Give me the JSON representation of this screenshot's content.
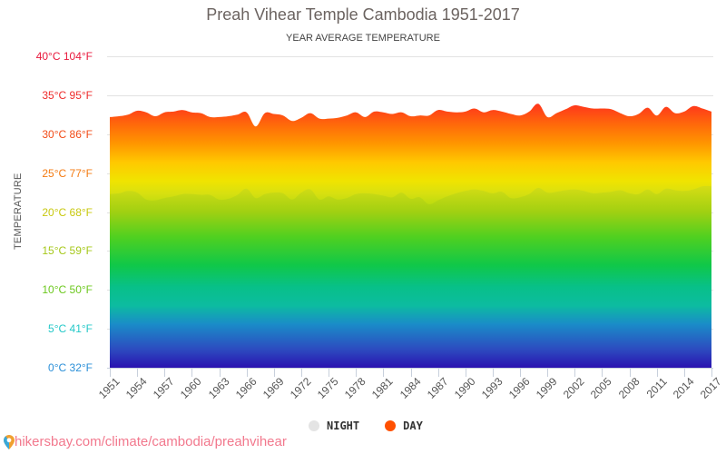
{
  "header": {
    "title": "Preah Vihear Temple Cambodia 1951-2017",
    "subtitle": "YEAR AVERAGE TEMPERATURE"
  },
  "yaxis": {
    "title": "TEMPERATURE",
    "ticks": [
      {
        "label": "40°C 104°F",
        "value": 40,
        "color": "#e8183c"
      },
      {
        "label": "35°C 95°F",
        "value": 35,
        "color": "#ee2b2b"
      },
      {
        "label": "30°C 86°F",
        "value": 30,
        "color": "#f24c18"
      },
      {
        "label": "25°C 77°F",
        "value": 25,
        "color": "#f47b12"
      },
      {
        "label": "20°C 68°F",
        "value": 20,
        "color": "#c8c80e"
      },
      {
        "label": "15°C 59°F",
        "value": 15,
        "color": "#a6c81a"
      },
      {
        "label": "10°C 50°F",
        "value": 10,
        "color": "#6cc81e"
      },
      {
        "label": "5°C 41°F",
        "value": 5,
        "color": "#23c8c8"
      },
      {
        "label": "0°C 32°F",
        "value": 0,
        "color": "#2a8fd8"
      }
    ]
  },
  "xaxis": {
    "ticks": [
      "1951",
      "1954",
      "1957",
      "1960",
      "1963",
      "1966",
      "1969",
      "1972",
      "1975",
      "1978",
      "1981",
      "1984",
      "1987",
      "1990",
      "1993",
      "1996",
      "1999",
      "2002",
      "2005",
      "2008",
      "2011",
      "2014",
      "2017"
    ]
  },
  "legend": {
    "night": {
      "label": "NIGHT",
      "color": "#dddddd"
    },
    "day": {
      "label": "DAY",
      "color": "#ff5000"
    }
  },
  "source": {
    "text": "hikersbay.com/climate/cambodia/preahvihear"
  },
  "chart_data": {
    "type": "area",
    "title": "Preah Vihear Temple Cambodia 1951-2017",
    "subtitle": "YEAR AVERAGE TEMPERATURE",
    "xlabel": "",
    "ylabel": "TEMPERATURE",
    "ylim": [
      0,
      40
    ],
    "grid": true,
    "legend_position": "bottom",
    "x": [
      1951,
      1952,
      1953,
      1954,
      1955,
      1956,
      1957,
      1958,
      1959,
      1960,
      1961,
      1962,
      1963,
      1964,
      1965,
      1966,
      1967,
      1968,
      1969,
      1970,
      1971,
      1972,
      1973,
      1974,
      1975,
      1976,
      1977,
      1978,
      1979,
      1980,
      1981,
      1982,
      1983,
      1984,
      1985,
      1986,
      1987,
      1988,
      1989,
      1990,
      1991,
      1992,
      1993,
      1994,
      1995,
      1996,
      1997,
      1998,
      1999,
      2000,
      2001,
      2002,
      2003,
      2004,
      2005,
      2006,
      2007,
      2008,
      2009,
      2010,
      2011,
      2012,
      2013,
      2014,
      2015,
      2016,
      2017
    ],
    "series": [
      {
        "name": "DAY",
        "unit": "°C",
        "values": [
          32.2,
          32.3,
          32.5,
          33.0,
          32.8,
          32.3,
          32.8,
          32.9,
          33.1,
          32.8,
          32.7,
          32.2,
          32.2,
          32.3,
          32.5,
          32.8,
          31.0,
          32.7,
          32.6,
          32.4,
          31.7,
          32.1,
          32.7,
          32.0,
          32.0,
          32.1,
          32.4,
          32.8,
          32.2,
          32.9,
          32.8,
          32.6,
          32.8,
          32.3,
          32.4,
          32.4,
          33.1,
          32.9,
          32.8,
          32.9,
          33.3,
          32.8,
          33.1,
          32.9,
          32.6,
          32.4,
          32.9,
          33.9,
          32.2,
          32.7,
          33.2,
          33.7,
          33.5,
          33.3,
          33.3,
          33.2,
          32.7,
          32.3,
          32.6,
          33.4,
          32.4,
          33.5,
          32.7,
          32.9,
          33.6,
          33.3,
          32.9
        ]
      },
      {
        "name": "NIGHT",
        "unit": "°C",
        "values": [
          22.3,
          22.4,
          22.7,
          22.5,
          21.6,
          21.5,
          21.8,
          22.0,
          22.3,
          22.3,
          22.2,
          22.2,
          21.6,
          21.7,
          22.2,
          23.0,
          21.8,
          22.3,
          22.5,
          22.4,
          21.6,
          22.5,
          22.9,
          21.6,
          22.0,
          21.6,
          21.8,
          22.3,
          22.4,
          22.3,
          22.1,
          21.9,
          22.5,
          21.7,
          21.9,
          21.0,
          21.5,
          22.0,
          22.4,
          22.7,
          22.9,
          22.7,
          22.4,
          22.6,
          21.8,
          21.9,
          22.3,
          23.1,
          22.5,
          22.6,
          22.8,
          22.9,
          22.7,
          22.4,
          22.5,
          22.6,
          22.8,
          22.4,
          22.3,
          22.9,
          22.3,
          23.0,
          22.8,
          22.7,
          22.9,
          23.3,
          23.3
        ]
      }
    ]
  }
}
